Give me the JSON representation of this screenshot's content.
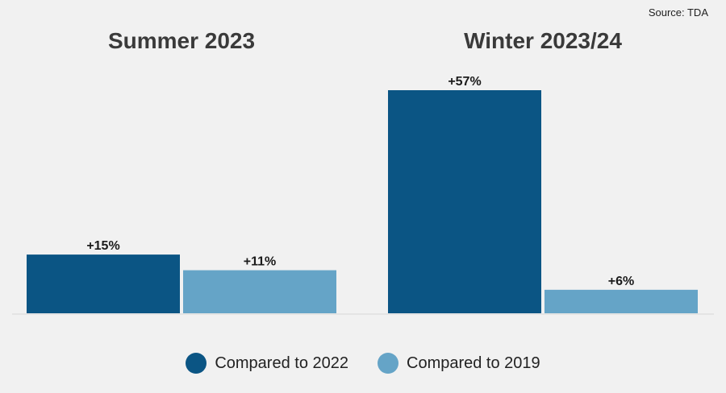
{
  "source": "Source: TDA",
  "chart_data": {
    "type": "bar",
    "categories": [
      "Summer 2023",
      "Winter 2023/24"
    ],
    "series": [
      {
        "name": "Compared to 2022",
        "values": [
          15,
          57
        ],
        "labels": [
          "+15%",
          "+57%"
        ],
        "color": "#0b5584"
      },
      {
        "name": "Compared to 2019",
        "values": [
          11,
          6
        ],
        "labels": [
          "+11%",
          "+6%"
        ],
        "color": "#65a4c7"
      }
    ],
    "legend_position": "bottom",
    "grid": false,
    "ylim": [
      0,
      57
    ]
  }
}
